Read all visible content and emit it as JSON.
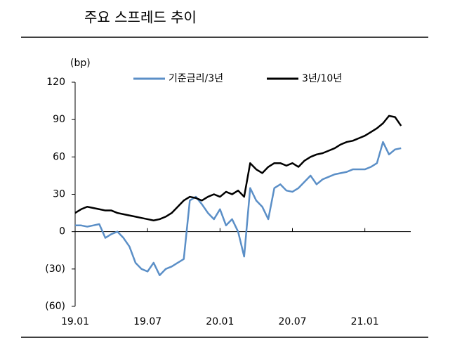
{
  "chart_data": {
    "type": "line",
    "title": "주요 스프레드 추이",
    "y_label": "(bp)",
    "x": [
      0,
      0.5,
      1,
      1.5,
      2,
      2.5,
      3,
      3.5,
      4,
      4.5,
      5,
      5.5,
      6,
      6.5,
      7,
      7.5,
      8,
      8.5,
      9,
      9.5,
      10,
      10.5,
      11,
      11.5,
      12,
      12.5,
      13,
      13.5,
      14,
      14.5,
      15,
      15.5,
      16,
      16.5,
      17,
      17.5,
      18,
      18.5,
      19,
      19.5,
      20,
      20.5,
      21,
      21.5,
      22,
      22.5,
      23,
      23.5,
      24,
      24.5,
      25,
      25.5,
      26,
      26.5,
      27
    ],
    "series": [
      {
        "name": "기준금리/3년",
        "color": "#5b8fc7",
        "values": [
          5,
          5,
          4,
          5,
          6,
          -5,
          -2,
          0,
          -5,
          -12,
          -25,
          -30,
          -32,
          -25,
          -35,
          -30,
          -28,
          -25,
          -22,
          25,
          28,
          22,
          15,
          10,
          18,
          5,
          10,
          0,
          -20,
          35,
          25,
          20,
          10,
          35,
          38,
          33,
          32,
          35,
          40,
          45,
          38,
          42,
          44,
          46,
          47,
          48,
          50,
          50,
          50,
          52,
          55,
          72,
          62,
          66,
          67
        ]
      },
      {
        "name": "3년/10년",
        "color": "#000000",
        "values": [
          15,
          18,
          20,
          19,
          18,
          17,
          17,
          15,
          14,
          13,
          12,
          11,
          10,
          9,
          10,
          12,
          15,
          20,
          25,
          28,
          27,
          25,
          28,
          30,
          28,
          32,
          30,
          33,
          28,
          55,
          50,
          47,
          52,
          55,
          55,
          53,
          55,
          52,
          57,
          60,
          62,
          63,
          65,
          67,
          70,
          72,
          73,
          75,
          77,
          80,
          83,
          87,
          93,
          92,
          85
        ]
      }
    ],
    "xlim": [
      0,
      27.8
    ],
    "xticks": [
      {
        "value": 0,
        "label": "19.01"
      },
      {
        "value": 6,
        "label": "19.07"
      },
      {
        "value": 12,
        "label": "20.01"
      },
      {
        "value": 18,
        "label": "20.07"
      },
      {
        "value": 24,
        "label": "21.01"
      }
    ],
    "ylim": [
      -60,
      120
    ],
    "yticks": [
      {
        "value": -60,
        "label": "(60)"
      },
      {
        "value": -30,
        "label": "(30)"
      },
      0,
      30,
      60,
      90,
      120
    ],
    "grid": false,
    "legend": "top"
  }
}
